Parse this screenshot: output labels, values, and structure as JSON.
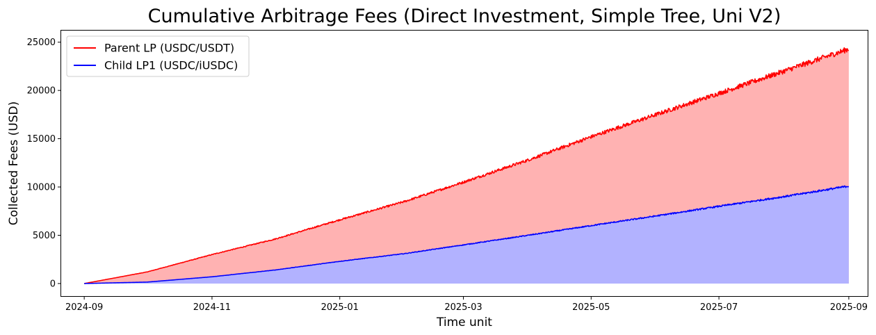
{
  "chart_data": {
    "type": "area",
    "title": "Cumulative Arbitrage Fees (Direct Investment, Simple Tree, Uni V2)",
    "xlabel": "Time unit",
    "ylabel": "Collected Fees (USD)",
    "x_ticks": [
      "2024-09",
      "2024-11",
      "2025-01",
      "2025-03",
      "2025-05",
      "2025-07",
      "2025-09"
    ],
    "x_tick_dates": [
      "2024-09-01",
      "2024-11-01",
      "2025-01-01",
      "2025-03-01",
      "2025-05-01",
      "2025-07-01",
      "2025-09-01"
    ],
    "y_ticks": [
      0,
      5000,
      10000,
      15000,
      20000,
      25000
    ],
    "xlim": [
      "2024-08-21",
      "2025-09-10"
    ],
    "ylim": [
      -1300,
      26200
    ],
    "legend_position": "upper-left",
    "grid": false,
    "series": [
      {
        "name": "Parent LP (USDC/USDT)",
        "color": "#ff0000",
        "fill": "#ffb2b2",
        "noise": 0.012,
        "points": [
          [
            "2024-09-01",
            0
          ],
          [
            "2024-10-01",
            1200
          ],
          [
            "2024-11-01",
            3000
          ],
          [
            "2024-12-01",
            4600
          ],
          [
            "2025-01-01",
            6600
          ],
          [
            "2025-02-01",
            8500
          ],
          [
            "2025-03-01",
            10500
          ],
          [
            "2025-04-01",
            12800
          ],
          [
            "2025-05-01",
            15200
          ],
          [
            "2025-06-01",
            17500
          ],
          [
            "2025-07-01",
            19700
          ],
          [
            "2025-08-01",
            22000
          ],
          [
            "2025-09-01",
            24300
          ]
        ]
      },
      {
        "name": "Child LP1 (USDC/iUSDC)",
        "color": "#0000ff",
        "fill": "#b2b2ff",
        "noise": 0.01,
        "points": [
          [
            "2024-09-01",
            0
          ],
          [
            "2024-10-01",
            150
          ],
          [
            "2024-11-01",
            700
          ],
          [
            "2024-12-01",
            1400
          ],
          [
            "2025-01-01",
            2300
          ],
          [
            "2025-02-01",
            3100
          ],
          [
            "2025-03-01",
            4000
          ],
          [
            "2025-04-01",
            5000
          ],
          [
            "2025-05-01",
            6000
          ],
          [
            "2025-06-01",
            7000
          ],
          [
            "2025-07-01",
            8000
          ],
          [
            "2025-08-01",
            9000
          ],
          [
            "2025-09-01",
            10100
          ]
        ]
      }
    ]
  }
}
